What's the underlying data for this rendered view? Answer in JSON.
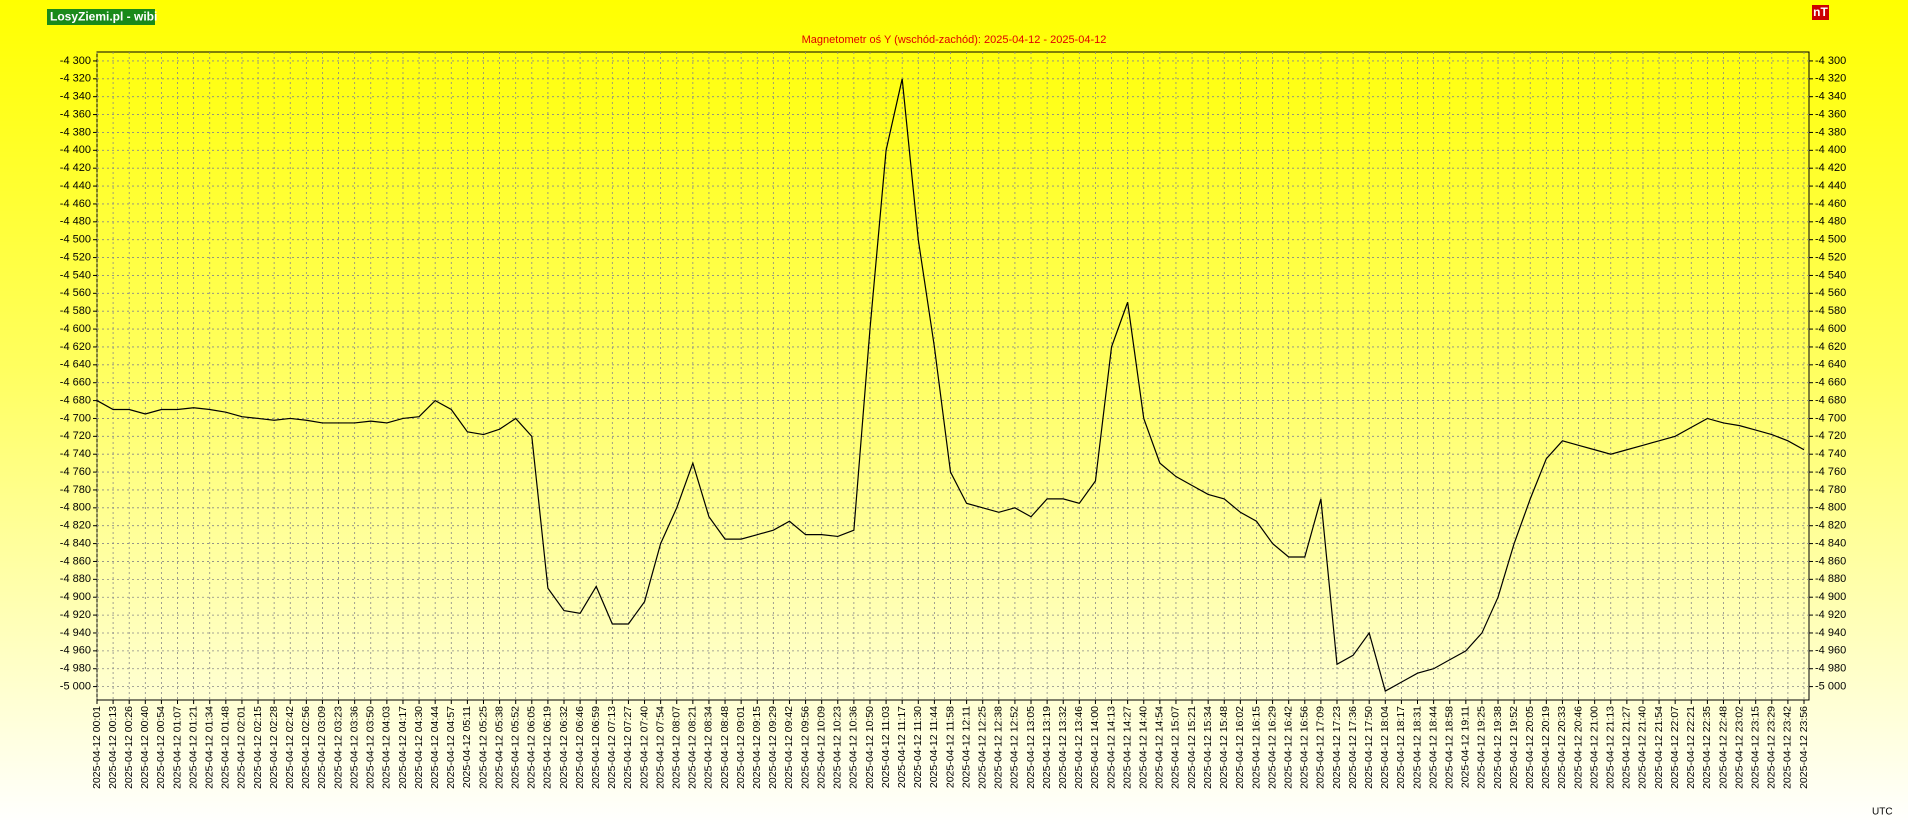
{
  "chart_data": {
    "type": "line",
    "site_label": "LosyZiemi.pl - wibi",
    "unit_label": "nT",
    "timezone_label": "UTC",
    "title": "Magnetometr oś Y (wschód-zachód): 2025-04-12 - 2025-04-12",
    "grid": true,
    "color": "#000000",
    "ylim": [
      -5015,
      -4290
    ],
    "yticks": [
      {
        "value": -4300,
        "label": "-4 300"
      },
      {
        "value": -4320,
        "label": "-4 320"
      },
      {
        "value": -4340,
        "label": "-4 340"
      },
      {
        "value": -4360,
        "label": "-4 360"
      },
      {
        "value": -4380,
        "label": "-4 380"
      },
      {
        "value": -4400,
        "label": "-4 400"
      },
      {
        "value": -4420,
        "label": "-4 420"
      },
      {
        "value": -4440,
        "label": "-4 440"
      },
      {
        "value": -4460,
        "label": "-4 460"
      },
      {
        "value": -4480,
        "label": "-4 480"
      },
      {
        "value": -4500,
        "label": "-4 500"
      },
      {
        "value": -4520,
        "label": "-4 520"
      },
      {
        "value": -4540,
        "label": "-4 540"
      },
      {
        "value": -4560,
        "label": "-4 560"
      },
      {
        "value": -4580,
        "label": "-4 580"
      },
      {
        "value": -4600,
        "label": "-4 600"
      },
      {
        "value": -4620,
        "label": "-4 620"
      },
      {
        "value": -4640,
        "label": "-4 640"
      },
      {
        "value": -4660,
        "label": "-4 660"
      },
      {
        "value": -4680,
        "label": "-4 680"
      },
      {
        "value": -4700,
        "label": "-4 700"
      },
      {
        "value": -4720,
        "label": "-4 720"
      },
      {
        "value": -4740,
        "label": "-4 740"
      },
      {
        "value": -4760,
        "label": "-4 760"
      },
      {
        "value": -4780,
        "label": "-4 780"
      },
      {
        "value": -4800,
        "label": "-4 800"
      },
      {
        "value": -4820,
        "label": "-4 820"
      },
      {
        "value": -4840,
        "label": "-4 840"
      },
      {
        "value": -4860,
        "label": "-4 860"
      },
      {
        "value": -4880,
        "label": "-4 880"
      },
      {
        "value": -4900,
        "label": "-4 900"
      },
      {
        "value": -4920,
        "label": "-4 920"
      },
      {
        "value": -4940,
        "label": "-4 940"
      },
      {
        "value": -4960,
        "label": "-4 960"
      },
      {
        "value": -4980,
        "label": "-4 980"
      },
      {
        "value": -5000,
        "label": "-5 000"
      }
    ],
    "categories": [
      "2025-04-12 00:01",
      "2025-04-12 00:13",
      "2025-04-12 00:26",
      "2025-04-12 00:40",
      "2025-04-12 00:54",
      "2025-04-12 01:07",
      "2025-04-12 01:21",
      "2025-04-12 01:34",
      "2025-04-12 01:48",
      "2025-04-12 02:01",
      "2025-04-12 02:15",
      "2025-04-12 02:28",
      "2025-04-12 02:42",
      "2025-04-12 02:56",
      "2025-04-12 03:09",
      "2025-04-12 03:23",
      "2025-04-12 03:36",
      "2025-04-12 03:50",
      "2025-04-12 04:03",
      "2025-04-12 04:17",
      "2025-04-12 04:30",
      "2025-04-12 04:44",
      "2025-04-12 04:57",
      "2025-04-12 05:11",
      "2025-04-12 05:25",
      "2025-04-12 05:38",
      "2025-04-12 05:52",
      "2025-04-12 06:05",
      "2025-04-12 06:19",
      "2025-04-12 06:32",
      "2025-04-12 06:46",
      "2025-04-12 06:59",
      "2025-04-12 07:13",
      "2025-04-12 07:27",
      "2025-04-12 07:40",
      "2025-04-12 07:54",
      "2025-04-12 08:07",
      "2025-04-12 08:21",
      "2025-04-12 08:34",
      "2025-04-12 08:48",
      "2025-04-12 09:01",
      "2025-04-12 09:15",
      "2025-04-12 09:29",
      "2025-04-12 09:42",
      "2025-04-12 09:56",
      "2025-04-12 10:09",
      "2025-04-12 10:23",
      "2025-04-12 10:36",
      "2025-04-12 10:50",
      "2025-04-12 11:03",
      "2025-04-12 11:17",
      "2025-04-12 11:30",
      "2025-04-12 11:44",
      "2025-04-12 11:58",
      "2025-04-12 12:11",
      "2025-04-12 12:25",
      "2025-04-12 12:38",
      "2025-04-12 12:52",
      "2025-04-12 13:05",
      "2025-04-12 13:19",
      "2025-04-12 13:32",
      "2025-04-12 13:46",
      "2025-04-12 14:00",
      "2025-04-12 14:13",
      "2025-04-12 14:27",
      "2025-04-12 14:40",
      "2025-04-12 14:54",
      "2025-04-12 15:07",
      "2025-04-12 15:21",
      "2025-04-12 15:34",
      "2025-04-12 15:48",
      "2025-04-12 16:02",
      "2025-04-12 16:15",
      "2025-04-12 16:29",
      "2025-04-12 16:42",
      "2025-04-12 16:56",
      "2025-04-12 17:09",
      "2025-04-12 17:23",
      "2025-04-12 17:36",
      "2025-04-12 17:50",
      "2025-04-12 18:04",
      "2025-04-12 18:17",
      "2025-04-12 18:31",
      "2025-04-12 18:44",
      "2025-04-12 18:58",
      "2025-04-12 19:11",
      "2025-04-12 19:25",
      "2025-04-12 19:38",
      "2025-04-12 19:52",
      "2025-04-12 20:05",
      "2025-04-12 20:19",
      "2025-04-12 20:33",
      "2025-04-12 20:46",
      "2025-04-12 21:00",
      "2025-04-12 21:13",
      "2025-04-12 21:27",
      "2025-04-12 21:40",
      "2025-04-12 21:54",
      "2025-04-12 22:07",
      "2025-04-12 22:21",
      "2025-04-12 22:35",
      "2025-04-12 22:48",
      "2025-04-12 23:02",
      "2025-04-12 23:15",
      "2025-04-12 23:29",
      "2025-04-12 23:42",
      "2025-04-12 23:56"
    ],
    "values": [
      -4680,
      -4690,
      -4690,
      -4695,
      -4690,
      -4690,
      -4688,
      -4690,
      -4693,
      -4698,
      -4700,
      -4702,
      -4700,
      -4702,
      -4705,
      -4705,
      -4705,
      -4703,
      -4705,
      -4700,
      -4698,
      -4680,
      -4690,
      -4715,
      -4718,
      -4712,
      -4700,
      -4720,
      -4890,
      -4915,
      -4918,
      -4888,
      -4930,
      -4930,
      -4905,
      -4840,
      -4800,
      -4750,
      -4810,
      -4835,
      -4835,
      -4830,
      -4825,
      -4815,
      -4830,
      -4830,
      -4832,
      -4825,
      -4600,
      -4400,
      -4320,
      -4500,
      -4620,
      -4760,
      -4795,
      -4800,
      -4805,
      -4800,
      -4810,
      -4790,
      -4790,
      -4795,
      -4770,
      -4620,
      -4570,
      -4700,
      -4750,
      -4765,
      -4775,
      -4785,
      -4790,
      -4805,
      -4815,
      -4840,
      -4855,
      -4855,
      -4790,
      -4975,
      -4965,
      -4940,
      -5005,
      -4995,
      -4985,
      -4980,
      -4970,
      -4960,
      -4940,
      -4900,
      -4840,
      -4790,
      -4745,
      -4725,
      -4730,
      -4735,
      -4740,
      -4735,
      -4730,
      -4725,
      -4720,
      -4710,
      -4700,
      -4705,
      -4708,
      -4713,
      -4718,
      -4725,
      -4735
    ]
  }
}
